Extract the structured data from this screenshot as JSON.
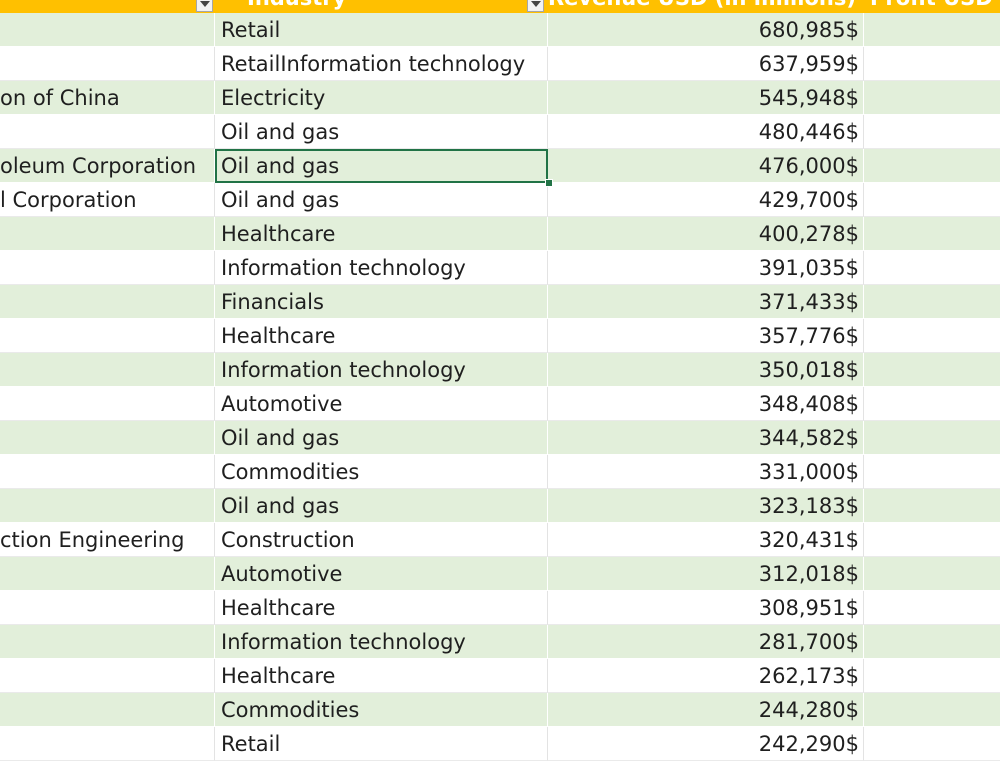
{
  "header": {
    "industry": "Industry",
    "revenue": "Revenue USD (in millions)",
    "profit": "Profit USD (i"
  },
  "rows": [
    {
      "company": "",
      "industry": "Retail",
      "revenue": "680,985$"
    },
    {
      "company": "",
      "industry": "RetailInformation technology",
      "revenue": "637,959$"
    },
    {
      "company": "on of China",
      "industry": "Electricity",
      "revenue": "545,948$"
    },
    {
      "company": "",
      "industry": "Oil and gas",
      "revenue": "480,446$"
    },
    {
      "company": "oleum Corporation",
      "industry": "Oil and gas",
      "revenue": "476,000$"
    },
    {
      "company": "l Corporation",
      "industry": "Oil and gas",
      "revenue": "429,700$"
    },
    {
      "company": "",
      "industry": "Healthcare",
      "revenue": "400,278$"
    },
    {
      "company": "",
      "industry": "Information technology",
      "revenue": "391,035$"
    },
    {
      "company": "",
      "industry": "Financials",
      "revenue": "371,433$"
    },
    {
      "company": "",
      "industry": "Healthcare",
      "revenue": "357,776$"
    },
    {
      "company": "",
      "industry": "Information technology",
      "revenue": "350,018$"
    },
    {
      "company": "",
      "industry": "Automotive",
      "revenue": "348,408$"
    },
    {
      "company": "",
      "industry": "Oil and gas",
      "revenue": "344,582$"
    },
    {
      "company": "",
      "industry": "Commodities",
      "revenue": "331,000$"
    },
    {
      "company": "",
      "industry": "Oil and gas",
      "revenue": "323,183$"
    },
    {
      "company": "ction Engineering",
      "industry": "Construction",
      "revenue": "320,431$"
    },
    {
      "company": "",
      "industry": "Automotive",
      "revenue": "312,018$"
    },
    {
      "company": "",
      "industry": "Healthcare",
      "revenue": "308,951$"
    },
    {
      "company": "",
      "industry": "Information technology",
      "revenue": "281,700$"
    },
    {
      "company": "",
      "industry": "Healthcare",
      "revenue": "262,173$"
    },
    {
      "company": "",
      "industry": "Commodities",
      "revenue": "244,280$"
    },
    {
      "company": "",
      "industry": "Retail",
      "revenue": "242,290$"
    }
  ],
  "selected_row_index": 4,
  "colors": {
    "header_bg": "#ffc000",
    "band_bg": "#e2efda",
    "selection": "#217346"
  }
}
